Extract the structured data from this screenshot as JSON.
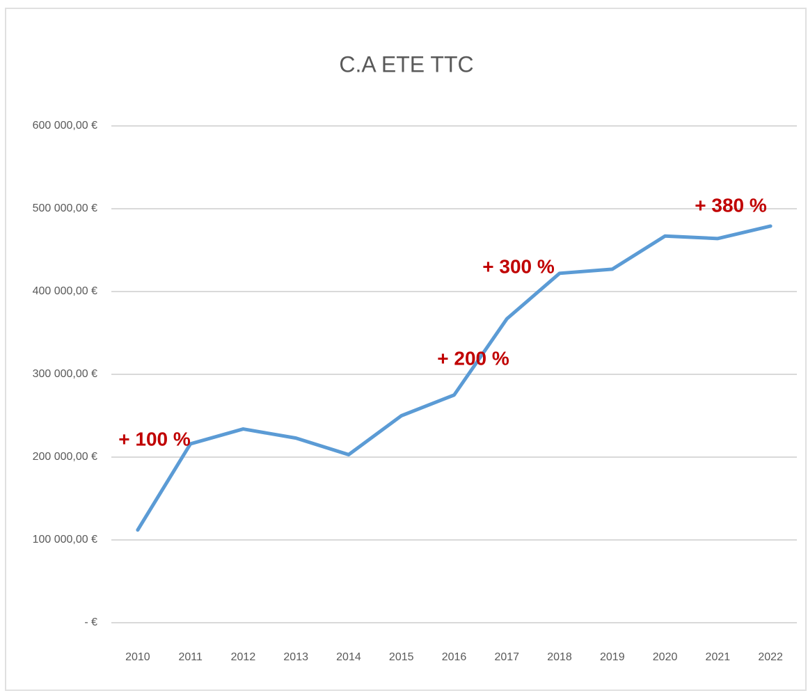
{
  "chart_data": {
    "type": "line",
    "title": "C.A ETE TTC",
    "categories": [
      "2010",
      "2011",
      "2012",
      "2013",
      "2014",
      "2015",
      "2016",
      "2017",
      "2018",
      "2019",
      "2020",
      "2021",
      "2022"
    ],
    "series": [
      {
        "name": "C.A ETE TTC",
        "color": "#5b9bd5",
        "values": [
          112000,
          216000,
          234000,
          223000,
          203000,
          250000,
          275000,
          367000,
          422000,
          427000,
          467000,
          464000,
          479000
        ]
      }
    ],
    "ylim": [
      0,
      600000
    ],
    "yticks": [
      {
        "value": 0,
        "label": "- €"
      },
      {
        "value": 100000,
        "label": "100 000,00 €"
      },
      {
        "value": 200000,
        "label": "200 000,00 €"
      },
      {
        "value": 300000,
        "label": "300 000,00 €"
      },
      {
        "value": 400000,
        "label": "400 000,00 €"
      },
      {
        "value": 500000,
        "label": "500 000,00 €"
      },
      {
        "value": 600000,
        "label": "600 000,00 €"
      }
    ],
    "grid": true,
    "annotations": [
      "+ 100 %",
      "+ 200 %",
      "+ 300 %",
      "+ 380 %"
    ]
  }
}
